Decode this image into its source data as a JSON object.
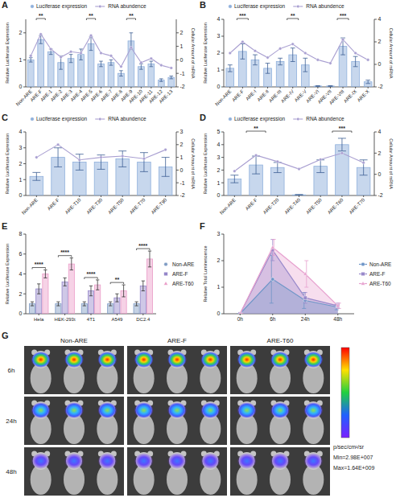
{
  "chart_data": [
    {
      "type": "bar",
      "title": "A",
      "legend": "top",
      "ylabel": "Relative Luciferase Expression",
      "y2label": "Cellular Amount of mRNA",
      "categories": [
        "Non-ARE",
        "ARE-F",
        "ARE-1",
        "ARE-2",
        "ARE-3",
        "ARE-4",
        "ARE-5",
        "ARE-6",
        "ARE-7",
        "ARE-8",
        "ARE-9",
        "ARE-10",
        "ARE-11",
        "ARE-12",
        "ARE-13"
      ],
      "series": [
        {
          "name": "Luciferase expression",
          "type": "bar",
          "color": "#8fb0dc",
          "values": [
            1.0,
            1.75,
            1.3,
            0.9,
            1.05,
            1.2,
            1.6,
            0.85,
            0.9,
            0.5,
            1.7,
            0.75,
            0.85,
            0.25,
            0.35
          ],
          "errors": [
            0.08,
            0.15,
            0.1,
            0.25,
            0.15,
            0.2,
            0.25,
            0.1,
            0.1,
            0.1,
            0.3,
            0.1,
            0.1,
            0.05,
            0.05
          ]
        },
        {
          "name": "RNA abundence",
          "type": "line",
          "axis": "y2",
          "color": "#a99fd1",
          "marker": "circle",
          "values": [
            0.3,
            1.9,
            0.8,
            0.2,
            0.6,
            0.5,
            1.8,
            0.5,
            0.3,
            -0.5,
            0.9,
            -0.2,
            0.1,
            -0.4,
            -0.6
          ]
        }
      ],
      "ylim": [
        0,
        2.5
      ],
      "yticks": [
        0,
        1,
        2
      ],
      "y2lim": [
        -2,
        3
      ],
      "y2ticks": [
        -2,
        -1,
        0,
        1,
        2
      ],
      "annotations": [
        {
          "text": "**",
          "category": "ARE-F"
        },
        {
          "text": "**",
          "category": "ARE-5"
        },
        {
          "text": "**",
          "category": "ARE-9"
        }
      ]
    },
    {
      "type": "bar",
      "title": "B",
      "legend": "top",
      "ylabel": "Relative Luciferase Expression",
      "y2label": "Cellular Amount of mRNA",
      "categories": [
        "Non-ARE",
        "ARE-F",
        "ARE-I",
        "ARE-II",
        "ARE-III",
        "ARE-IV",
        "ARE-V",
        "ARE-VI",
        "ARE-VII",
        "ARE-VIII",
        "ARE-IX",
        "ARE-X"
      ],
      "series": [
        {
          "name": "Luciferase expression",
          "type": "bar",
          "color": "#8fb0dc",
          "values": [
            1.1,
            2.1,
            1.6,
            1.1,
            1.5,
            1.9,
            1.3,
            0.05,
            0.05,
            2.4,
            1.5,
            0.3
          ],
          "errors": [
            0.2,
            0.45,
            0.3,
            0.3,
            0.2,
            0.4,
            0.4,
            0.02,
            0.02,
            0.5,
            0.3,
            0.1
          ]
        },
        {
          "name": "RNA abundence",
          "type": "line",
          "axis": "y2",
          "color": "#a99fd1",
          "marker": "circle",
          "values": [
            1.0,
            2.0,
            1.2,
            0.6,
            1.4,
            1.8,
            1.0,
            0.4,
            0.1,
            2.2,
            1.0,
            0.4
          ]
        }
      ],
      "ylim": [
        0,
        4
      ],
      "yticks": [
        0,
        1,
        2,
        3,
        4
      ],
      "y2lim": [
        -2,
        4
      ],
      "y2ticks": [
        -2,
        0,
        2,
        4
      ],
      "annotations": [
        {
          "text": "***",
          "category": "ARE-F"
        },
        {
          "text": "**",
          "category": "ARE-IV"
        },
        {
          "text": "***",
          "category": "ARE-VIII"
        }
      ]
    },
    {
      "type": "bar",
      "title": "C",
      "legend": "top",
      "ylabel": "Relative Luciferase Expression",
      "y2label": "Cellular Amount of mRNA",
      "categories": [
        "Non-ARE",
        "ARE-F",
        "ARE-T10",
        "ARE-T30",
        "ARE-T50",
        "ARE-T70",
        "ARE-T90"
      ],
      "series": [
        {
          "name": "Luciferase expression",
          "type": "bar",
          "color": "#8fb0dc",
          "values": [
            1.2,
            2.4,
            2.1,
            2.1,
            2.3,
            2.1,
            1.8
          ],
          "errors": [
            0.25,
            0.6,
            0.5,
            0.45,
            0.5,
            0.6,
            0.6
          ]
        },
        {
          "name": "RNA abundence",
          "type": "line",
          "axis": "y2",
          "color": "#a99fd1",
          "marker": "circle",
          "values": [
            1.0,
            2.0,
            0.8,
            1.0,
            1.1,
            0.9,
            1.6
          ]
        }
      ],
      "ylim": [
        0,
        4
      ],
      "yticks": [
        0,
        1,
        2,
        3,
        4
      ],
      "y2lim": [
        -2,
        3
      ],
      "y2ticks": [
        -2,
        -1,
        0,
        1,
        2,
        3
      ]
    },
    {
      "type": "bar",
      "title": "D",
      "legend": "top",
      "ylabel": "Relative Luciferase Expression",
      "y2label": "Cellular Amount of mRNA",
      "categories": [
        "Non-ARE",
        "ARE-F",
        "ARE-T20",
        "ARE-T40",
        "ARE-T50",
        "ARE-T60",
        "ARE-T70"
      ],
      "series": [
        {
          "name": "Luciferase expression",
          "type": "bar",
          "color": "#8fb0dc",
          "values": [
            1.3,
            2.4,
            2.2,
            0.05,
            2.3,
            4.0,
            2.2
          ],
          "errors": [
            0.3,
            0.7,
            0.4,
            0.03,
            0.5,
            0.5,
            0.6
          ]
        },
        {
          "name": "RNA abundence",
          "type": "line",
          "axis": "y2",
          "color": "#a99fd1",
          "marker": "circle",
          "values": [
            0.3,
            1.8,
            1.2,
            0.5,
            1.4,
            2.0,
            1.1
          ]
        }
      ],
      "ylim": [
        0,
        5
      ],
      "yticks": [
        0,
        1,
        2,
        3,
        4,
        5
      ],
      "y2lim": [
        -2,
        4
      ],
      "y2ticks": [
        -2,
        0,
        2,
        4
      ],
      "annotations": [
        {
          "text": "**",
          "category": "ARE-F"
        },
        {
          "text": "***",
          "category": "ARE-T60"
        }
      ]
    },
    {
      "type": "bar",
      "title": "E",
      "legend": "right",
      "ylabel": "Relative Luciferase Expression",
      "categories": [
        "Hela",
        "HEK-293t",
        "4T1",
        "A549",
        "DC2.4"
      ],
      "series": [
        {
          "name": "Non-ARE",
          "color": "#7f9cc4",
          "marker": "circle",
          "values": [
            1.0,
            1.0,
            1.0,
            1.0,
            1.0
          ],
          "errors": [
            0.2,
            0.2,
            0.2,
            0.2,
            0.2
          ]
        },
        {
          "name": "ARE-F",
          "color": "#9486c9",
          "marker": "square",
          "values": [
            2.5,
            3.2,
            2.3,
            1.6,
            2.8
          ],
          "errors": [
            0.5,
            0.4,
            0.5,
            0.4,
            0.5
          ]
        },
        {
          "name": "ARE-T60",
          "color": "#ea9cc8",
          "marker": "triangle",
          "values": [
            4.0,
            5.0,
            2.9,
            2.3,
            5.5
          ],
          "errors": [
            0.4,
            0.6,
            0.5,
            0.6,
            0.8
          ]
        }
      ],
      "ylim": [
        0,
        8
      ],
      "yticks": [
        0,
        2,
        4,
        6,
        8
      ],
      "annotations": [
        {
          "text": "****",
          "category": "Hela"
        },
        {
          "text": "****",
          "category": "HEK-293t"
        },
        {
          "text": "****",
          "category": "4T1"
        },
        {
          "text": "**",
          "category": "A549"
        },
        {
          "text": "****",
          "category": "DC2.4"
        }
      ]
    },
    {
      "type": "area",
      "title": "F",
      "legend": "right",
      "ylabel": "Relative Total Luminescence",
      "categories": [
        "0h",
        "6h",
        "24h",
        "48h"
      ],
      "series": [
        {
          "name": "Non-ARE",
          "color": "#6f96c8",
          "marker": "circle",
          "values": [
            0,
            1.3,
            0.5,
            0.25
          ],
          "errors": [
            0,
            0.9,
            0.3,
            0.1
          ]
        },
        {
          "name": "ARE-F",
          "color": "#9a8acb",
          "marker": "square",
          "values": [
            0,
            2.4,
            0.6,
            0.3
          ],
          "errors": [
            0,
            0.4,
            0.2,
            0.1
          ]
        },
        {
          "name": "ARE-T60",
          "color": "#e7a1cf",
          "marker": "triangle",
          "values": [
            0,
            2.5,
            1.5,
            0.3
          ],
          "errors": [
            0,
            0.3,
            0.5,
            0.1
          ]
        }
      ],
      "ylim": [
        0,
        3
      ],
      "yticks": [
        0,
        1,
        2,
        3
      ]
    }
  ],
  "image": {
    "title": "G",
    "columns": [
      "Non-ARE",
      "ARE-F",
      "ARE-T60"
    ],
    "rows": [
      "6h",
      "24h",
      "48h"
    ],
    "colorbar": {
      "unit": "p/sec/cm²/sr",
      "min_label": "Min=2.98E+007",
      "max_label": "Max=1.64E+009"
    }
  }
}
